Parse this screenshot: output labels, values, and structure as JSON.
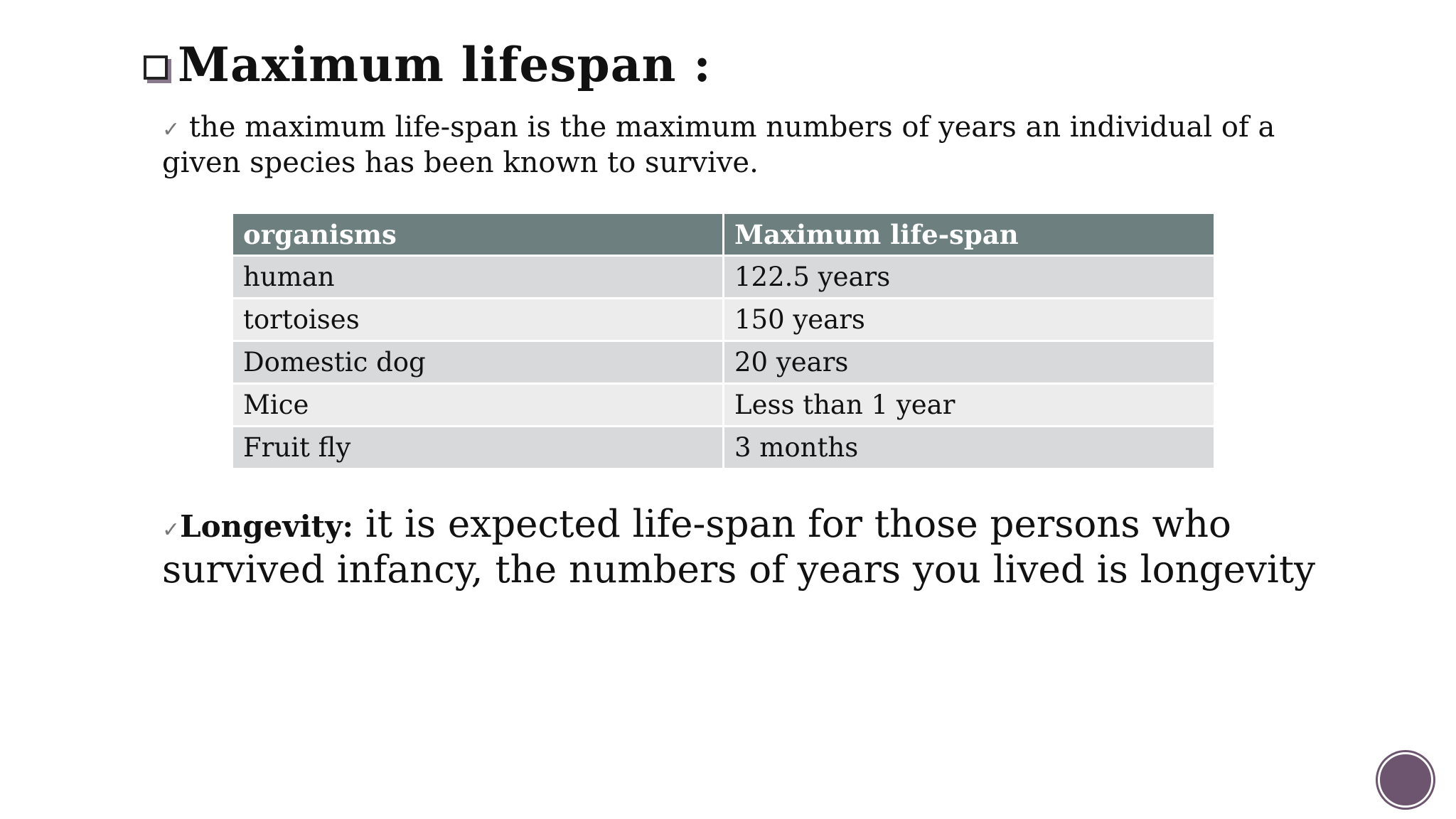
{
  "header": {
    "title": "Maximum lifespan :"
  },
  "definition": {
    "text": "the maximum life-span is the maximum numbers of years an individual of  a given species has been known to survive."
  },
  "table": {
    "header": [
      "organisms",
      "Maximum life-span"
    ],
    "rows": [
      [
        "human",
        "122.5 years"
      ],
      [
        "tortoises",
        "150 years"
      ],
      [
        "Domestic dog",
        "20 years"
      ],
      [
        "Mice",
        "Less than 1 year"
      ],
      [
        "Fruit fly",
        "3 months"
      ]
    ]
  },
  "longevity": {
    "term": "Longevity:",
    "text": "it is expected life-span for those persons who survived infancy, the numbers of years you lived is longevity"
  }
}
